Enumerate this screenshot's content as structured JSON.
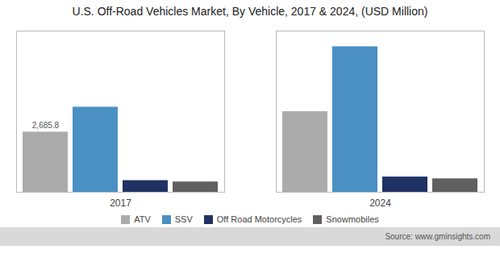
{
  "chart_data": {
    "type": "bar",
    "title": "U.S. Off-Road Vehicles Market, By Vehicle, 2017 & 2024, (USD Million)",
    "categories": [
      "2017",
      "2024"
    ],
    "series": [
      {
        "name": "ATV",
        "color": "#ababab",
        "values": [
          2685.8,
          3600.0
        ]
      },
      {
        "name": "SSV",
        "color": "#4a90c4",
        "values": [
          3800.0,
          6500.0
        ]
      },
      {
        "name": "Off Road Motorcycles",
        "color": "#1f3263",
        "values": [
          520.0,
          680.0
        ]
      },
      {
        "name": "Snowmobiles",
        "color": "#606060",
        "values": [
          460.0,
          600.0
        ]
      }
    ],
    "annotations": [
      {
        "text": "2,685.8",
        "x": "2017",
        "series": "ATV",
        "y": 2685.8
      }
    ],
    "source": "Source: www.gminsights.com",
    "ylim": [
      0,
      7200
    ],
    "tick_labels": "x",
    "grid": false,
    "legend": "bottom"
  }
}
